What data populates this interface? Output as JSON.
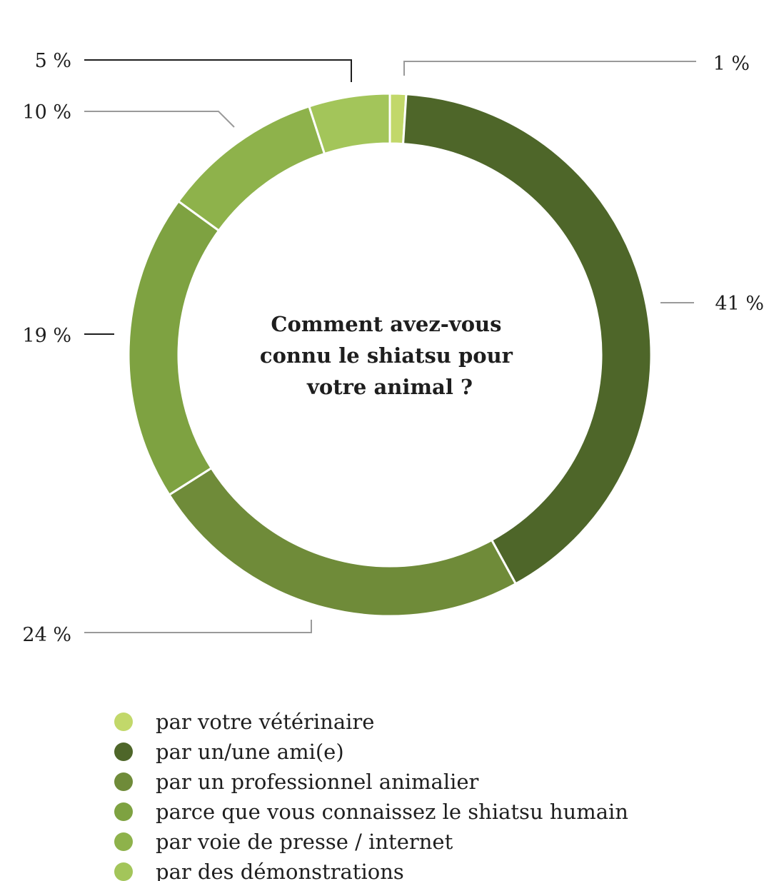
{
  "chart_data": {
    "type": "pie",
    "title": "Comment avez-vous connu le shiatsu pour votre animal ?",
    "title_lines": [
      "Comment avez-vous",
      "connu le shiatsu pour",
      "votre animal ?"
    ],
    "categories": [
      "par votre vétérinaire",
      "par un/une ami(e)",
      "par un professionnel animalier",
      "parce que vous connaissez le shiatsu humain",
      "par voie de presse / internet",
      "par des démonstrations"
    ],
    "values": [
      1,
      41,
      24,
      19,
      10,
      5
    ],
    "value_labels": [
      "1 %",
      "41 %",
      "24 %",
      "19 %",
      "10 %",
      "5 %"
    ],
    "colors": [
      "#c2d86a",
      "#4e6629",
      "#6f8b39",
      "#7ea241",
      "#8eb24b",
      "#a3c55a"
    ],
    "legend_position": "bottom-left"
  }
}
